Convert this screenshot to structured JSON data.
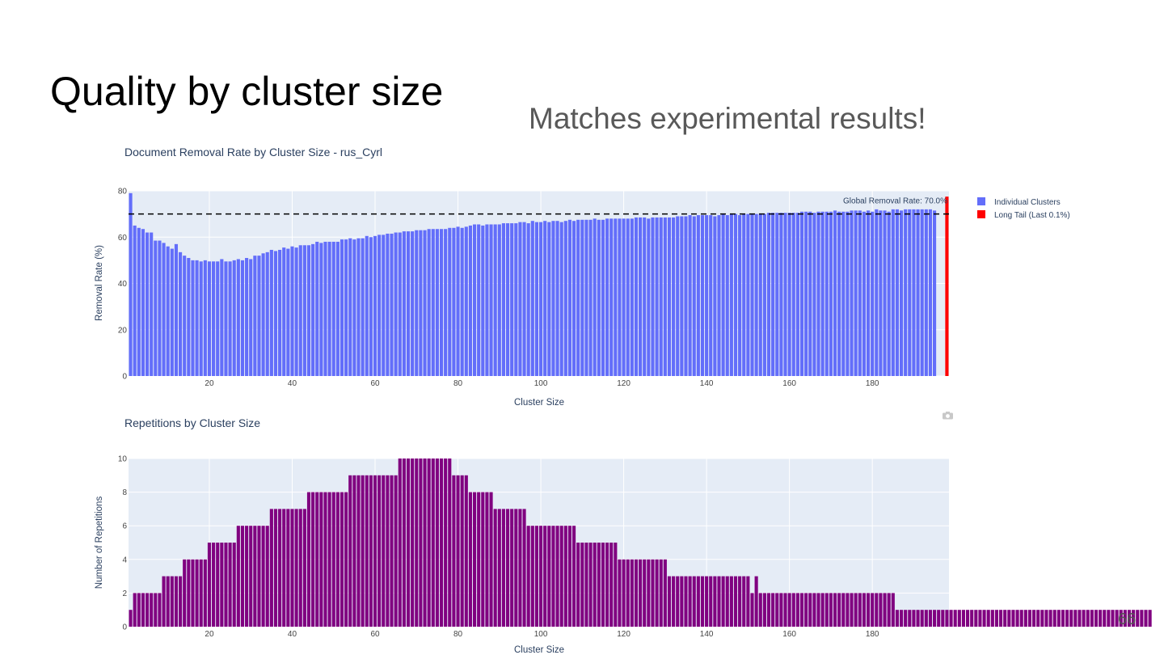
{
  "slide": {
    "title": "Quality by cluster size",
    "subtitle": "Matches experimental results!",
    "page_number": "66"
  },
  "chart_data": [
    {
      "type": "bar",
      "title": "Document Removal Rate by Cluster Size - rus_Cyrl",
      "xlabel": "Cluster Size",
      "ylabel": "Removal Rate (%)",
      "xlim": [
        1,
        198
      ],
      "ylim": [
        0,
        80
      ],
      "xticks": [
        20,
        40,
        60,
        80,
        100,
        120,
        140,
        160,
        180
      ],
      "yticks": [
        0,
        20,
        40,
        60,
        80
      ],
      "grid": true,
      "legend_position": "right",
      "series": [
        {
          "name": "Individual Clusters",
          "color": "#636efa",
          "x_start": 1,
          "values": [
            79,
            65,
            64,
            63.5,
            62,
            62,
            58.5,
            58.5,
            57.5,
            56,
            55,
            57,
            53.5,
            52,
            51,
            50,
            50,
            49.5,
            50,
            49.5,
            49.5,
            49.5,
            50.5,
            49.5,
            49.5,
            50,
            50.5,
            50,
            51,
            50.5,
            52,
            52,
            53,
            53.5,
            54.5,
            54,
            54.5,
            55.5,
            55,
            56,
            55.5,
            56.5,
            56.5,
            56.5,
            57,
            58,
            57.5,
            58,
            58,
            58,
            58,
            59,
            59,
            59.5,
            59,
            59.5,
            59.5,
            60.5,
            60,
            60.5,
            61,
            61,
            61.5,
            61.5,
            62,
            62,
            62.5,
            62.5,
            62.5,
            63,
            63,
            63,
            63.5,
            63.5,
            63.5,
            63.5,
            63.5,
            64,
            64,
            64.5,
            64,
            64.5,
            65,
            65.5,
            65.5,
            65,
            65.5,
            65.5,
            65.5,
            65.5,
            66,
            66,
            66,
            66,
            66.5,
            66.5,
            66,
            67,
            66.5,
            66.5,
            67,
            66.5,
            67,
            67,
            66.5,
            67,
            67.5,
            67,
            67.5,
            67.5,
            67.5,
            67.5,
            68,
            67.5,
            67.5,
            68,
            68,
            68,
            68,
            68,
            68,
            68,
            68.5,
            68.5,
            68.5,
            68,
            68.5,
            68.5,
            68.5,
            68.5,
            68.5,
            68.5,
            69,
            69,
            69,
            69.5,
            69,
            69.5,
            69.5,
            69.5,
            69.5,
            69,
            69.5,
            70,
            69.5,
            70,
            70,
            69.5,
            70,
            70,
            70,
            70,
            70,
            70,
            70.5,
            70.5,
            70.5,
            70.5,
            70.5,
            70.5,
            70.5,
            70.5,
            71,
            71,
            71,
            70.5,
            71,
            71,
            71,
            71,
            71.5,
            71,
            71,
            71,
            71.5,
            71.5,
            71.5,
            71,
            71.5,
            71,
            72,
            71.5,
            71.5,
            71,
            72,
            72,
            71.5,
            72,
            72,
            72,
            72,
            72,
            72,
            72,
            71.5
          ]
        },
        {
          "name": "Long Tail (Last 0.1%)",
          "color": "#ff0000",
          "x": [
            198
          ],
          "values": [
            77.5
          ]
        }
      ],
      "annotations": [
        {
          "text": "Global Removal Rate: 70.0%",
          "y": 70,
          "style": "dashed-line"
        }
      ]
    },
    {
      "type": "bar",
      "title": "Repetitions by Cluster Size",
      "xlabel": "Cluster Size",
      "ylabel": "Number of Repetitions",
      "xlim": [
        1,
        198
      ],
      "ylim": [
        0,
        10
      ],
      "xticks": [
        20,
        40,
        60,
        80,
        100,
        120,
        140,
        160,
        180
      ],
      "yticks": [
        0,
        2,
        4,
        6,
        8,
        10
      ],
      "grid": true,
      "series": [
        {
          "color": "#800080",
          "x_start": 1,
          "runs": [
            [
              1,
              1
            ],
            [
              2,
              3
            ],
            [
              2,
              4
            ],
            [
              3,
              5
            ],
            [
              4,
              6
            ],
            [
              5,
              7
            ],
            [
              6,
              8
            ],
            [
              7,
              9
            ],
            [
              8,
              10
            ],
            [
              9,
              12
            ],
            [
              10,
              13
            ],
            [
              9,
              4
            ],
            [
              8,
              6
            ],
            [
              7,
              8
            ],
            [
              6,
              12
            ],
            [
              5,
              10
            ],
            [
              4,
              12
            ],
            [
              3,
              20
            ],
            [
              2,
              1
            ],
            [
              3,
              1
            ],
            [
              2,
              33
            ],
            [
              1,
              62
            ]
          ]
        }
      ]
    }
  ]
}
